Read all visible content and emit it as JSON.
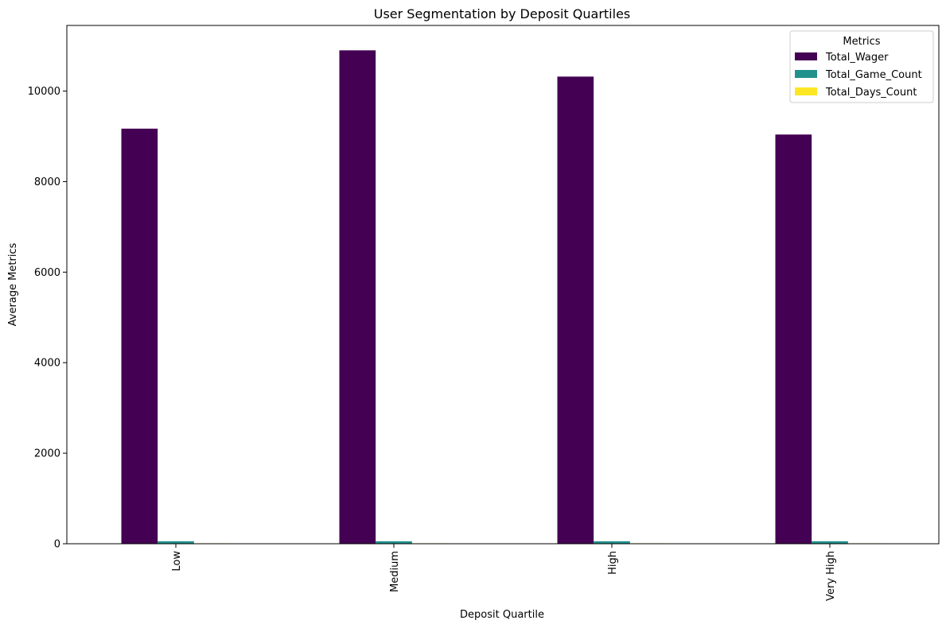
{
  "chart_data": {
    "type": "bar",
    "title": "User Segmentation by Deposit Quartiles",
    "xlabel": "Deposit Quartile",
    "ylabel": "Average Metrics",
    "categories": [
      "Low",
      "Medium",
      "High",
      "Very High"
    ],
    "series": [
      {
        "name": "Total_Wager",
        "color": "#440154",
        "values": [
          9170,
          10900,
          10320,
          9040
        ]
      },
      {
        "name": "Total_Game_Count",
        "color": "#21918c",
        "values": [
          55,
          55,
          55,
          55
        ]
      },
      {
        "name": "Total_Days_Count",
        "color": "#fde725",
        "values": [
          10,
          10,
          10,
          10
        ]
      }
    ],
    "ylim": [
      0,
      11450
    ],
    "yticks": [
      0,
      2000,
      4000,
      6000,
      8000,
      10000
    ],
    "ytick_labels": [
      "0",
      "2000",
      "4000",
      "6000",
      "8000",
      "10000"
    ],
    "grid": false,
    "legend": {
      "title": "Metrics",
      "placement": "top-right"
    }
  }
}
